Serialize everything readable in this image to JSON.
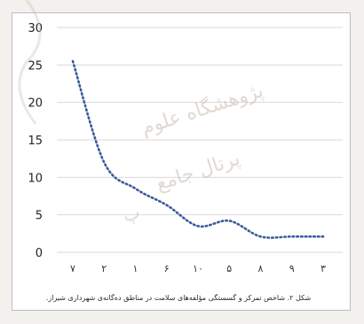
{
  "chart_data": {
    "type": "line",
    "categories": [
      "۷",
      "۲",
      "۱",
      "۶",
      "۱۰",
      "۵",
      "۸",
      "۹",
      "۳"
    ],
    "series": [
      {
        "values": [
          25.5,
          12,
          8.5,
          6.3,
          3.5,
          4.2,
          2.1,
          2.1,
          2.1
        ]
      }
    ],
    "ylim": [
      0,
      30
    ],
    "yticks": [
      0,
      5,
      10,
      15,
      20,
      25,
      30
    ],
    "grid": true,
    "line_style": "dotted",
    "line_color": "#3a5a9c"
  },
  "caption": "شکل ۲. شاخص تمرکز و گسستگی مؤلفه‌های سلامت در مناطق ده‌گانه‌ی شهرداری شیراز.",
  "watermark": {
    "lines": [
      "پژوهشگاه علوم",
      "پرتال جامع",
      "پ"
    ],
    "color": "#c9b9ad"
  }
}
